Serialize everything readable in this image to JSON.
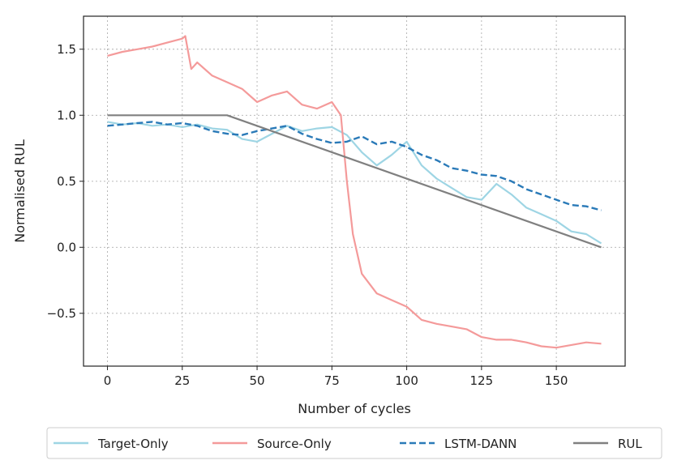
{
  "chart_data": {
    "type": "line",
    "title": "",
    "xlabel": "Number of cycles",
    "ylabel": "Normalised RUL",
    "xlim": [
      -8,
      173
    ],
    "ylim": [
      -0.9,
      1.75
    ],
    "xticks": [
      0,
      25,
      50,
      75,
      100,
      125,
      150
    ],
    "xtick_labels": [
      "0",
      "25",
      "50",
      "75",
      "100",
      "125",
      "150"
    ],
    "yticks": [
      -0.5,
      0.0,
      0.5,
      1.0,
      1.5
    ],
    "ytick_labels": [
      "−0.5",
      "0.0",
      "0.5",
      "1.0",
      "1.5"
    ],
    "grid": true,
    "legend_position": "bottom-outside",
    "series": [
      {
        "name": "Target-Only",
        "color": "#9ed5e4",
        "style": "solid",
        "x": [
          0,
          5,
          10,
          15,
          20,
          25,
          30,
          35,
          40,
          45,
          50,
          55,
          60,
          65,
          70,
          75,
          80,
          85,
          90,
          95,
          100,
          105,
          110,
          115,
          120,
          125,
          130,
          135,
          140,
          145,
          150,
          155,
          160,
          165
        ],
        "y": [
          0.95,
          0.93,
          0.94,
          0.92,
          0.93,
          0.91,
          0.93,
          0.9,
          0.89,
          0.82,
          0.8,
          0.86,
          0.92,
          0.88,
          0.9,
          0.91,
          0.85,
          0.72,
          0.62,
          0.7,
          0.8,
          0.62,
          0.52,
          0.45,
          0.38,
          0.36,
          0.48,
          0.4,
          0.3,
          0.25,
          0.2,
          0.12,
          0.1,
          0.03
        ]
      },
      {
        "name": "Source-Only",
        "color": "#f49a9a",
        "style": "solid",
        "x": [
          0,
          5,
          10,
          15,
          20,
          25,
          26,
          28,
          30,
          35,
          40,
          45,
          50,
          55,
          60,
          65,
          70,
          75,
          78,
          80,
          82,
          85,
          90,
          95,
          100,
          105,
          110,
          115,
          120,
          125,
          130,
          135,
          140,
          145,
          150,
          155,
          160,
          165
        ],
        "y": [
          1.45,
          1.48,
          1.5,
          1.52,
          1.55,
          1.58,
          1.6,
          1.35,
          1.4,
          1.3,
          1.25,
          1.2,
          1.1,
          1.15,
          1.18,
          1.08,
          1.05,
          1.1,
          1.0,
          0.5,
          0.1,
          -0.2,
          -0.35,
          -0.4,
          -0.45,
          -0.55,
          -0.58,
          -0.6,
          -0.62,
          -0.68,
          -0.7,
          -0.7,
          -0.72,
          -0.75,
          -0.76,
          -0.74,
          -0.72,
          -0.73
        ]
      },
      {
        "name": "LSTM-DANN",
        "color": "#2a7ab8",
        "style": "dashed",
        "x": [
          0,
          5,
          10,
          15,
          20,
          25,
          30,
          35,
          40,
          45,
          50,
          55,
          60,
          65,
          70,
          75,
          80,
          85,
          90,
          95,
          100,
          105,
          110,
          115,
          120,
          125,
          130,
          135,
          140,
          145,
          150,
          155,
          160,
          165
        ],
        "y": [
          0.92,
          0.93,
          0.94,
          0.95,
          0.93,
          0.94,
          0.92,
          0.88,
          0.86,
          0.85,
          0.88,
          0.9,
          0.92,
          0.86,
          0.82,
          0.79,
          0.8,
          0.84,
          0.78,
          0.8,
          0.76,
          0.7,
          0.66,
          0.6,
          0.58,
          0.55,
          0.54,
          0.5,
          0.44,
          0.4,
          0.36,
          0.32,
          0.31,
          0.28
        ]
      },
      {
        "name": "RUL",
        "color": "#808080",
        "style": "solid",
        "x": [
          0,
          40,
          165
        ],
        "y": [
          1.0,
          1.0,
          0.0
        ]
      }
    ]
  }
}
